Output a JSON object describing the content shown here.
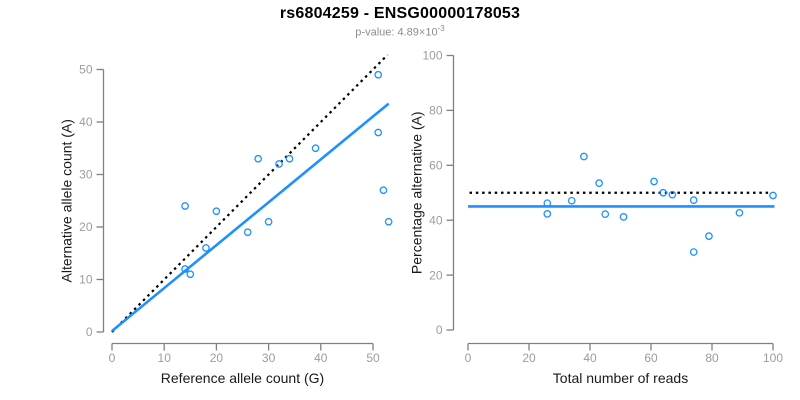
{
  "header": {
    "title": "rs6804259 - ENSG00000178053",
    "subtitle_prefix": "p-value: 4.89×10",
    "subtitle_exponent": "-3"
  },
  "colors": {
    "accent_blue": "#1E90FF",
    "identity_black": "#000000",
    "axis_line_gray": "#808080",
    "tick_label_gray": "#9c9c9c",
    "axis_title_black": "#1a1a1a"
  },
  "chart_data": [
    {
      "id": "allele-counts",
      "type": "scatter",
      "title": "",
      "xlabel": "Reference allele count (G)",
      "ylabel": "Alternative allele count (A)",
      "xlim": [
        0,
        53
      ],
      "ylim": [
        0,
        53
      ],
      "xticks": [
        0,
        10,
        20,
        30,
        40,
        50
      ],
      "yticks": [
        0,
        10,
        20,
        30,
        40,
        50
      ],
      "grid": false,
      "legend": "none",
      "points": [
        [
          51,
          49
        ],
        [
          51,
          38
        ],
        [
          39,
          35
        ],
        [
          34,
          33
        ],
        [
          28,
          33
        ],
        [
          32,
          32
        ],
        [
          52,
          27
        ],
        [
          14,
          24
        ],
        [
          20,
          23
        ],
        [
          53,
          21
        ],
        [
          30,
          21
        ],
        [
          26,
          19
        ],
        [
          18,
          16
        ],
        [
          14,
          12
        ],
        [
          15,
          11
        ]
      ],
      "lines": [
        {
          "name": "identity-line",
          "style": "dotted",
          "color": "#000000",
          "from": [
            0,
            0
          ],
          "to": [
            52.8,
            52.8
          ]
        },
        {
          "name": "regression-line",
          "style": "solid",
          "color": "#1E90FF",
          "from": [
            0,
            0.2
          ],
          "to": [
            53,
            43.5
          ]
        }
      ]
    },
    {
      "id": "percentage-alternative",
      "type": "scatter",
      "title": "",
      "xlabel": "Total number of reads",
      "ylabel": "Percentage alternative (A)",
      "xlim": [
        0,
        100
      ],
      "ylim": [
        0,
        100
      ],
      "xticks": [
        0,
        20,
        40,
        60,
        80,
        100
      ],
      "yticks": [
        0,
        20,
        40,
        60,
        80,
        100
      ],
      "grid": false,
      "legend": "none",
      "points": [
        [
          100,
          49
        ],
        [
          89,
          42.7
        ],
        [
          74,
          47.3
        ],
        [
          74,
          28.4
        ],
        [
          79,
          34.2
        ],
        [
          67,
          49.3
        ],
        [
          64,
          50
        ],
        [
          61,
          54.1
        ],
        [
          51,
          41.2
        ],
        [
          45,
          42.2
        ],
        [
          43,
          53.5
        ],
        [
          38,
          63.2
        ],
        [
          34,
          47.1
        ],
        [
          26,
          46.2
        ],
        [
          26,
          42.3
        ]
      ],
      "lines": [
        {
          "name": "expected-50pct-line",
          "style": "dotted",
          "color": "#000000",
          "from": [
            0.5,
            50
          ],
          "to": [
            98.5,
            50
          ]
        },
        {
          "name": "mean-percentage-line",
          "style": "solid",
          "color": "#1E90FF",
          "from": [
            0,
            45
          ],
          "to": [
            100.5,
            45
          ]
        }
      ]
    }
  ]
}
